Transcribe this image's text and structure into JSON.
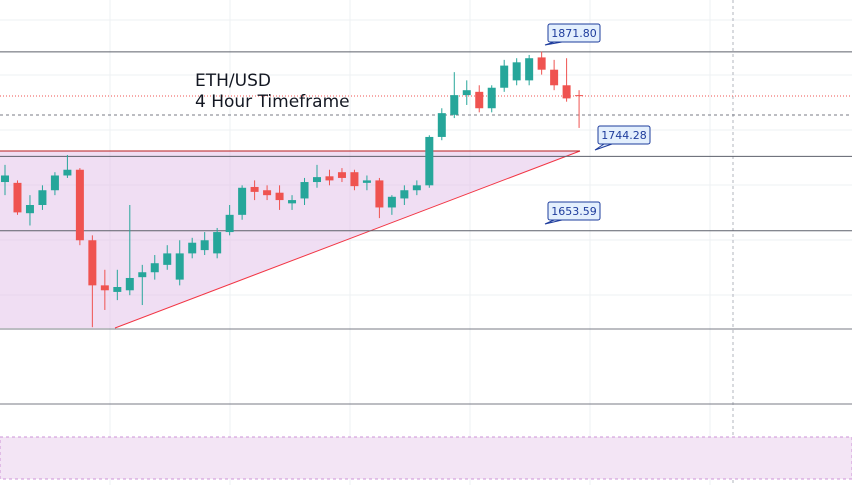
{
  "chart_data": {
    "type": "candlestick",
    "title": "ETH/USD",
    "subtitle": "4 Hour Timeframe",
    "open": [
      1713,
      1712,
      1675,
      1685,
      1703,
      1721,
      1728,
      1642,
      1587,
      1579,
      1581,
      1597,
      1603,
      1612,
      1594,
      1626,
      1630,
      1626,
      1652,
      1673,
      1707,
      1703,
      1700,
      1687,
      1693,
      1713,
      1720,
      1725,
      1725,
      1712,
      1715,
      1682,
      1693,
      1703,
      1709,
      1768,
      1795,
      1819,
      1823,
      1803,
      1828,
      1837,
      1837,
      1865,
      1850,
      1831,
      1819
    ],
    "high": [
      1734,
      1715,
      1697,
      1709,
      1725,
      1746,
      1730,
      1648,
      1606,
      1606,
      1685,
      1612,
      1624,
      1636,
      1642,
      1645,
      1652,
      1657,
      1685,
      1709,
      1715,
      1709,
      1709,
      1697,
      1718,
      1734,
      1728,
      1730,
      1728,
      1721,
      1718,
      1697,
      1709,
      1715,
      1770,
      1803,
      1847,
      1837,
      1831,
      1831,
      1862,
      1864,
      1868,
      1872,
      1862,
      1864,
      1825
    ],
    "low": [
      1697,
      1673,
      1660,
      1679,
      1697,
      1718,
      1636,
      1536,
      1557,
      1569,
      1575,
      1563,
      1594,
      1606,
      1587,
      1620,
      1624,
      1620,
      1648,
      1667,
      1691,
      1691,
      1679,
      1679,
      1685,
      1706,
      1709,
      1713,
      1703,
      1703,
      1669,
      1673,
      1685,
      1697,
      1706,
      1764,
      1791,
      1807,
      1798,
      1798,
      1823,
      1831,
      1831,
      1844,
      1825,
      1811,
      1779
    ],
    "close": [
      1721,
      1676,
      1685,
      1703,
      1721,
      1728,
      1642,
      1587,
      1581,
      1585,
      1596,
      1603,
      1614,
      1626,
      1626,
      1639,
      1642,
      1652,
      1673,
      1706,
      1701,
      1697,
      1691,
      1691,
      1713,
      1719,
      1715,
      1718,
      1708,
      1715,
      1682,
      1695,
      1703,
      1709,
      1768,
      1797,
      1819,
      1825,
      1803,
      1828,
      1855,
      1859,
      1864,
      1850,
      1831,
      1815,
      1818
    ],
    "up_color": "#26a69a",
    "down_color": "#ef5350",
    "ylim": [
      1535,
      1935
    ],
    "annotations": [
      {
        "value": 1871.8,
        "label": "1871.80"
      },
      {
        "value": 1744.28,
        "label": "1744.28"
      },
      {
        "value": 1653.59,
        "label": "1653.59"
      }
    ]
  }
}
